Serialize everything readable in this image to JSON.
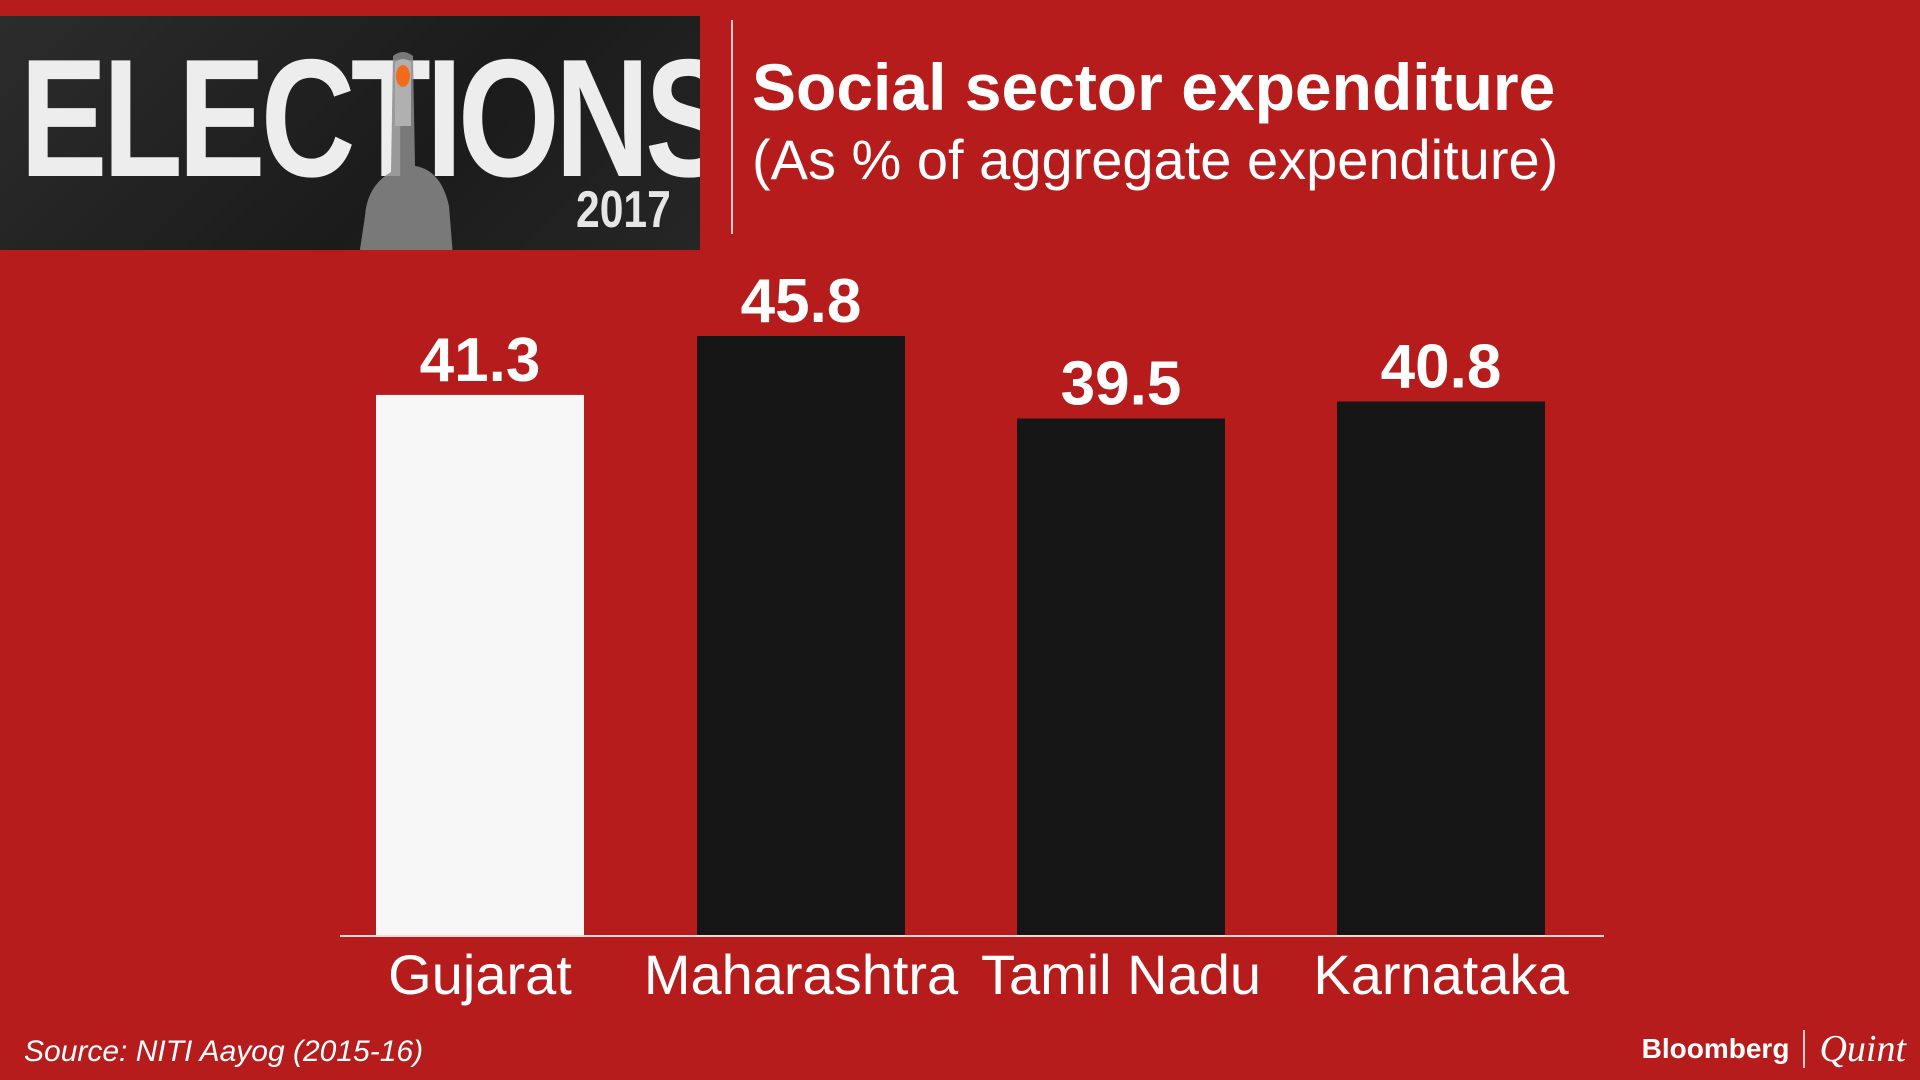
{
  "banner": {
    "word": "ELECTIONS",
    "year": "2017"
  },
  "header": {
    "title": "Social sector expenditure",
    "subtitle": "(As % of aggregate expenditure)"
  },
  "chart_data": {
    "type": "bar",
    "categories": [
      "Gujarat",
      "Maharashtra",
      "Tamil Nadu",
      "Karnataka"
    ],
    "values": [
      41.3,
      45.8,
      39.5,
      40.8
    ],
    "value_labels": [
      "41.3",
      "45.8",
      "39.5",
      "40.8"
    ],
    "bar_colors": [
      "#f7f7f7",
      "#161616",
      "#161616",
      "#161616"
    ],
    "title": "Social sector expenditure",
    "subtitle": "(As % of aggregate expenditure)",
    "xlabel": "",
    "ylabel": "",
    "ylim": [
      0,
      45.8
    ],
    "grid": false,
    "legend": "none"
  },
  "footer": {
    "source": "Source: NITI Aayog (2015-16)",
    "brand_left": "Bloomberg",
    "brand_right": "Quint"
  },
  "colors": {
    "background": "#b71c1c",
    "text": "#ffffff",
    "highlight_bar": "#f7f7f7",
    "bar": "#161616"
  }
}
